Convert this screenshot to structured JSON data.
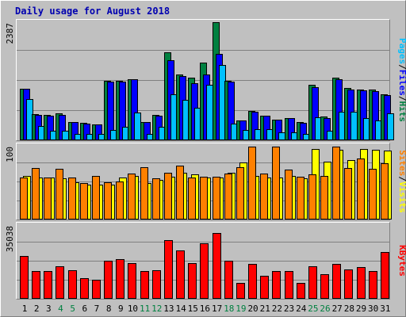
{
  "chart_data": [
    {
      "type": "bar",
      "title": "Daily usage for August 2018",
      "y_max_label": "2387",
      "ylim": [
        0,
        2387
      ],
      "x": [
        "1",
        "2",
        "3",
        "4",
        "5",
        "6",
        "7",
        "8",
        "9",
        "10",
        "11",
        "12",
        "13",
        "14",
        "15",
        "16",
        "17",
        "18",
        "19",
        "20",
        "21",
        "22",
        "23",
        "24",
        "25",
        "26",
        "27",
        "28",
        "29",
        "30",
        "31"
      ],
      "weekend_days": [
        "4",
        "5",
        "11",
        "12",
        "18",
        "19",
        "25",
        "26"
      ],
      "series": [
        {
          "name": "Hits",
          "color": "#008040",
          "values": [
            1040,
            520,
            500,
            540,
            360,
            340,
            310,
            1200,
            1200,
            1230,
            360,
            500,
            1770,
            1330,
            1250,
            1560,
            2387,
            1200,
            390,
            580,
            490,
            400,
            430,
            360,
            1120,
            460,
            1250,
            1050,
            1020,
            1010,
            920
          ]
        },
        {
          "name": "Files",
          "color": "#0000ff",
          "values": [
            1030,
            500,
            490,
            500,
            350,
            330,
            310,
            1170,
            1170,
            1230,
            350,
            480,
            1610,
            1290,
            1140,
            1330,
            1740,
            1180,
            380,
            570,
            480,
            400,
            430,
            340,
            1070,
            440,
            1230,
            1020,
            1000,
            980,
            900
          ]
        },
        {
          "name": "Pages",
          "color": "#00c0ff",
          "values": [
            820,
            270,
            170,
            170,
            110,
            110,
            110,
            200,
            250,
            550,
            110,
            260,
            920,
            810,
            640,
            1110,
            1520,
            330,
            190,
            210,
            210,
            140,
            140,
            120,
            450,
            170,
            560,
            570,
            440,
            390,
            530
          ]
        }
      ],
      "side_labels": [
        "Pages",
        "/",
        "Files",
        "/",
        "Hits"
      ]
    },
    {
      "type": "bar",
      "y_max_label": "100",
      "ylim": [
        0,
        100
      ],
      "x": [
        "1",
        "2",
        "3",
        "4",
        "5",
        "6",
        "7",
        "8",
        "9",
        "10",
        "11",
        "12",
        "13",
        "14",
        "15",
        "16",
        "17",
        "18",
        "19",
        "20",
        "21",
        "22",
        "23",
        "24",
        "25",
        "26",
        "27",
        "28",
        "29",
        "30",
        "31"
      ],
      "series": [
        {
          "name": "Visits",
          "color": "#ff8000",
          "values": [
            57,
            70,
            57,
            69,
            56,
            49,
            59,
            50,
            51,
            62,
            71,
            55,
            63,
            73,
            56,
            58,
            58,
            62,
            71,
            99,
            62,
            99,
            67,
            58,
            61,
            59,
            99,
            70,
            83,
            69,
            76
          ]
        },
        {
          "name": "Sites",
          "color": "#ffff00",
          "values": [
            59,
            57,
            57,
            55,
            50,
            47,
            47,
            47,
            57,
            59,
            49,
            53,
            58,
            63,
            61,
            56,
            57,
            63,
            77,
            59,
            57,
            56,
            59,
            55,
            96,
            78,
            95,
            80,
            96,
            95,
            93
          ]
        }
      ],
      "side_labels": [
        "Sites",
        "/",
        "Visits"
      ]
    },
    {
      "type": "bar",
      "y_max_label": "35038",
      "ylim": [
        0,
        35038
      ],
      "x": [
        "1",
        "2",
        "3",
        "4",
        "5",
        "6",
        "7",
        "8",
        "9",
        "10",
        "11",
        "12",
        "13",
        "14",
        "15",
        "16",
        "17",
        "18",
        "19",
        "20",
        "21",
        "22",
        "23",
        "24",
        "25",
        "26",
        "27",
        "28",
        "29",
        "30",
        "31"
      ],
      "series": [
        {
          "name": "KBytes",
          "color": "#ff0000",
          "values": [
            20300,
            13100,
            13100,
            15100,
            13400,
            9600,
            8800,
            17800,
            18800,
            16600,
            12800,
            13300,
            27900,
            22700,
            16800,
            26100,
            31300,
            18000,
            7300,
            16400,
            10800,
            13100,
            12800,
            7300,
            15100,
            11600,
            16400,
            13900,
            14800,
            13100,
            22000
          ]
        }
      ],
      "side_labels": [
        "KBytes"
      ]
    }
  ],
  "colors": {
    "background": "#c0c0c0",
    "plot_background": "#c0c0c0",
    "gridline": "#808080",
    "title": "#0000b0",
    "weekday_label": "#000000",
    "weekend_label": "#008040"
  }
}
